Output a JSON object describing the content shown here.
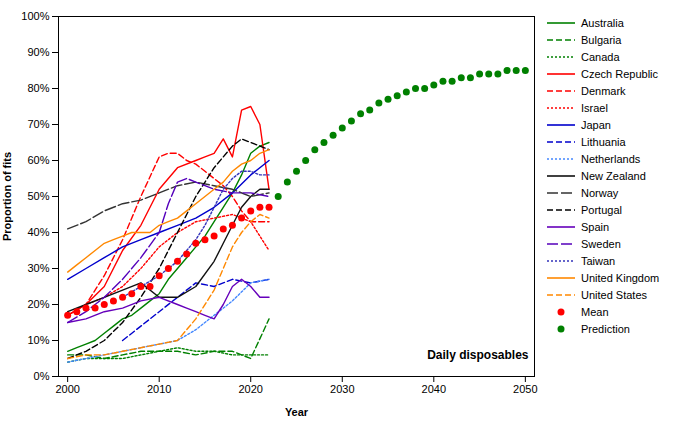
{
  "chart_data": {
    "type": "line",
    "xlabel": "Year",
    "ylabel": "Proportion of fits",
    "annotation": "Daily disposables",
    "xlim": [
      1999,
      2051
    ],
    "ylim": [
      0,
      1.0
    ],
    "xticks": [
      2000,
      2010,
      2020,
      2030,
      2040,
      2050
    ],
    "yticks": [
      {
        "value": 0,
        "label": "0%"
      },
      {
        "value": 0.1,
        "label": "10%"
      },
      {
        "value": 0.2,
        "label": "20%"
      },
      {
        "value": 0.3,
        "label": "30%"
      },
      {
        "value": 0.4,
        "label": "40%"
      },
      {
        "value": 0.5,
        "label": "50%"
      },
      {
        "value": 0.6,
        "label": "60%"
      },
      {
        "value": 0.7,
        "label": "70%"
      },
      {
        "value": 0.8,
        "label": "80%"
      },
      {
        "value": 0.9,
        "label": "90%"
      },
      {
        "value": 1.0,
        "label": "100%"
      }
    ],
    "grid": false,
    "legend": "right",
    "series": [
      {
        "name": "Australia",
        "color": "#008000",
        "line_style": "solid",
        "x": [
          2000,
          2001,
          2002,
          2003,
          2004,
          2005,
          2006,
          2007,
          2008,
          2009,
          2010,
          2011,
          2012,
          2013,
          2014,
          2015,
          2016,
          2017,
          2018,
          2019,
          2020,
          2021,
          2022
        ],
        "values": [
          0.07,
          0.08,
          0.09,
          0.1,
          0.12,
          0.14,
          0.16,
          0.17,
          0.19,
          0.21,
          0.23,
          0.27,
          0.3,
          0.33,
          0.36,
          0.39,
          0.43,
          0.47,
          0.51,
          0.56,
          0.62,
          0.64,
          0.65
        ]
      },
      {
        "name": "Bulgaria",
        "color": "#008000",
        "line_style": "dashed",
        "x": [
          2000,
          2002,
          2004,
          2006,
          2008,
          2010,
          2012,
          2014,
          2016,
          2018,
          2020,
          2022
        ],
        "values": [
          0.06,
          0.06,
          0.05,
          0.06,
          0.07,
          0.07,
          0.07,
          0.06,
          0.07,
          0.07,
          0.05,
          0.16
        ]
      },
      {
        "name": "Canada",
        "color": "#008000",
        "line_style": "dotted",
        "x": [
          2000,
          2002,
          2004,
          2006,
          2008,
          2010,
          2012,
          2014,
          2016,
          2018,
          2020,
          2022
        ],
        "values": [
          0.04,
          0.05,
          0.05,
          0.05,
          0.06,
          0.07,
          0.08,
          0.07,
          0.07,
          0.06,
          0.06,
          0.06
        ]
      },
      {
        "name": "Czech Republic",
        "color": "#ff0000",
        "line_style": "solid",
        "x": [
          2000,
          2002,
          2004,
          2006,
          2008,
          2010,
          2012,
          2014,
          2015,
          2016,
          2017,
          2018,
          2019,
          2020,
          2021,
          2022
        ],
        "values": [
          0.17,
          0.2,
          0.25,
          0.35,
          0.42,
          0.52,
          0.58,
          0.6,
          0.61,
          0.62,
          0.66,
          0.61,
          0.74,
          0.75,
          0.7,
          0.52
        ]
      },
      {
        "name": "Denmark",
        "color": "#ff0000",
        "line_style": "dashed",
        "x": [
          2000,
          2002,
          2004,
          2006,
          2008,
          2010,
          2011,
          2012,
          2013,
          2014,
          2015,
          2016,
          2017,
          2018,
          2019,
          2020,
          2022
        ],
        "values": [
          0.17,
          0.2,
          0.28,
          0.38,
          0.5,
          0.61,
          0.62,
          0.62,
          0.6,
          0.59,
          0.57,
          0.55,
          0.53,
          0.5,
          0.46,
          0.43,
          0.43
        ]
      },
      {
        "name": "Israel",
        "color": "#ff0000",
        "line_style": "dotted",
        "x": [
          2000,
          2002,
          2004,
          2006,
          2008,
          2010,
          2012,
          2014,
          2016,
          2018,
          2020,
          2022
        ],
        "values": [
          0.17,
          0.2,
          0.22,
          0.25,
          0.3,
          0.36,
          0.4,
          0.43,
          0.44,
          0.45,
          0.43,
          0.35
        ]
      },
      {
        "name": "Japan",
        "color": "#0000cc",
        "line_style": "solid",
        "x": [
          2000,
          2002,
          2004,
          2006,
          2008,
          2010,
          2012,
          2014,
          2016,
          2018,
          2020,
          2022
        ],
        "values": [
          0.27,
          0.3,
          0.33,
          0.36,
          0.38,
          0.4,
          0.42,
          0.44,
          0.47,
          0.51,
          0.56,
          0.6
        ]
      },
      {
        "name": "Lithuania",
        "color": "#0000cc",
        "line_style": "dashed",
        "x": [
          2006,
          2008,
          2010,
          2012,
          2014,
          2016,
          2018,
          2020,
          2022
        ],
        "values": [
          0.1,
          0.14,
          0.18,
          0.22,
          0.26,
          0.25,
          0.27,
          0.26,
          0.27
        ]
      },
      {
        "name": "Netherlands",
        "color": "#4488ff",
        "line_style": "dotted",
        "x": [
          2000,
          2002,
          2004,
          2006,
          2008,
          2010,
          2012,
          2014,
          2016,
          2018,
          2020,
          2022
        ],
        "values": [
          0.04,
          0.05,
          0.06,
          0.07,
          0.08,
          0.09,
          0.1,
          0.13,
          0.17,
          0.21,
          0.26,
          0.27
        ]
      },
      {
        "name": "New Zealand",
        "color": "#111111",
        "line_style": "solid",
        "x": [
          2000,
          2002,
          2004,
          2006,
          2008,
          2010,
          2012,
          2014,
          2016,
          2017,
          2018,
          2019,
          2020,
          2021,
          2022
        ],
        "values": [
          0.18,
          0.2,
          0.22,
          0.24,
          0.26,
          0.22,
          0.22,
          0.25,
          0.32,
          0.37,
          0.42,
          0.47,
          0.5,
          0.52,
          0.52
        ]
      },
      {
        "name": "Norway",
        "color": "#333333",
        "line_style": "longdash",
        "x": [
          2000,
          2002,
          2004,
          2006,
          2008,
          2010,
          2012,
          2014,
          2016,
          2018,
          2020,
          2022
        ],
        "values": [
          0.41,
          0.43,
          0.46,
          0.48,
          0.49,
          0.51,
          0.53,
          0.54,
          0.53,
          0.52,
          0.5,
          0.51
        ]
      },
      {
        "name": "Portugal",
        "color": "#000000",
        "line_style": "dashed",
        "x": [
          2000,
          2002,
          2004,
          2006,
          2008,
          2010,
          2012,
          2014,
          2016,
          2018,
          2019,
          2020,
          2021,
          2022
        ],
        "values": [
          0.05,
          0.07,
          0.1,
          0.15,
          0.22,
          0.3,
          0.4,
          0.5,
          0.58,
          0.64,
          0.66,
          0.65,
          0.64,
          0.63
        ]
      },
      {
        "name": "Spain",
        "color": "#6600bb",
        "line_style": "solid",
        "x": [
          2000,
          2002,
          2004,
          2006,
          2008,
          2010,
          2012,
          2013,
          2014,
          2015,
          2016,
          2017,
          2018,
          2019,
          2020,
          2021,
          2022
        ],
        "values": [
          0.15,
          0.16,
          0.18,
          0.19,
          0.21,
          0.22,
          0.2,
          0.19,
          0.18,
          0.17,
          0.16,
          0.2,
          0.25,
          0.27,
          0.25,
          0.22,
          0.22
        ]
      },
      {
        "name": "Sweden",
        "color": "#5500bb",
        "line_style": "longdash",
        "x": [
          2000,
          2002,
          2004,
          2006,
          2008,
          2010,
          2011,
          2012,
          2013,
          2014,
          2015,
          2016,
          2018,
          2020,
          2022
        ],
        "values": [
          0.15,
          0.18,
          0.22,
          0.27,
          0.33,
          0.4,
          0.48,
          0.54,
          0.55,
          0.54,
          0.53,
          0.52,
          0.51,
          0.51,
          0.5
        ]
      },
      {
        "name": "Taiwan",
        "color": "#3333bb",
        "line_style": "dotted",
        "x": [
          2006,
          2008,
          2010,
          2012,
          2014,
          2015,
          2016,
          2017,
          2018,
          2019,
          2020,
          2021,
          2022
        ],
        "values": [
          0.22,
          0.25,
          0.28,
          0.32,
          0.38,
          0.42,
          0.47,
          0.52,
          0.55,
          0.57,
          0.57,
          0.56,
          0.56
        ]
      },
      {
        "name": "United Kingdom",
        "color": "#ff8800",
        "line_style": "solid",
        "x": [
          2000,
          2001,
          2002,
          2003,
          2004,
          2005,
          2006,
          2007,
          2008,
          2009,
          2010,
          2011,
          2012,
          2013,
          2014,
          2015,
          2016,
          2017,
          2018,
          2019,
          2020,
          2021,
          2022
        ],
        "values": [
          0.29,
          0.31,
          0.33,
          0.35,
          0.37,
          0.38,
          0.39,
          0.4,
          0.4,
          0.4,
          0.42,
          0.43,
          0.44,
          0.46,
          0.48,
          0.5,
          0.52,
          0.54,
          0.57,
          0.59,
          0.6,
          0.62,
          0.63
        ]
      },
      {
        "name": "United States",
        "color": "#ff8800",
        "line_style": "dashed",
        "x": [
          2000,
          2002,
          2004,
          2006,
          2008,
          2010,
          2012,
          2014,
          2016,
          2017,
          2018,
          2019,
          2020,
          2021,
          2022
        ],
        "values": [
          0.05,
          0.06,
          0.06,
          0.07,
          0.08,
          0.09,
          0.1,
          0.16,
          0.24,
          0.3,
          0.36,
          0.4,
          0.43,
          0.45,
          0.44
        ]
      },
      {
        "name": "Mean",
        "type": "scatter",
        "marker": "circle",
        "color": "#ff0000",
        "x": [
          2000,
          2001,
          2002,
          2003,
          2004,
          2005,
          2006,
          2007,
          2008,
          2009,
          2010,
          2011,
          2012,
          2013,
          2014,
          2015,
          2016,
          2017,
          2018,
          2019,
          2020,
          2021,
          2022
        ],
        "values": [
          0.17,
          0.18,
          0.19,
          0.19,
          0.2,
          0.21,
          0.22,
          0.23,
          0.25,
          0.25,
          0.28,
          0.3,
          0.32,
          0.34,
          0.37,
          0.38,
          0.39,
          0.41,
          0.42,
          0.44,
          0.46,
          0.47,
          0.47
        ]
      },
      {
        "name": "Prediction",
        "type": "scatter",
        "marker": "circle",
        "color": "#008000",
        "x": [
          2023,
          2024,
          2025,
          2026,
          2027,
          2028,
          2029,
          2030,
          2031,
          2032,
          2033,
          2034,
          2035,
          2036,
          2037,
          2038,
          2039,
          2040,
          2041,
          2042,
          2043,
          2044,
          2045,
          2046,
          2047,
          2048,
          2049,
          2050
        ],
        "values": [
          0.5,
          0.54,
          0.57,
          0.6,
          0.63,
          0.65,
          0.67,
          0.69,
          0.71,
          0.73,
          0.74,
          0.76,
          0.77,
          0.78,
          0.79,
          0.8,
          0.8,
          0.81,
          0.82,
          0.82,
          0.83,
          0.83,
          0.84,
          0.84,
          0.84,
          0.85,
          0.85,
          0.85
        ]
      }
    ]
  }
}
